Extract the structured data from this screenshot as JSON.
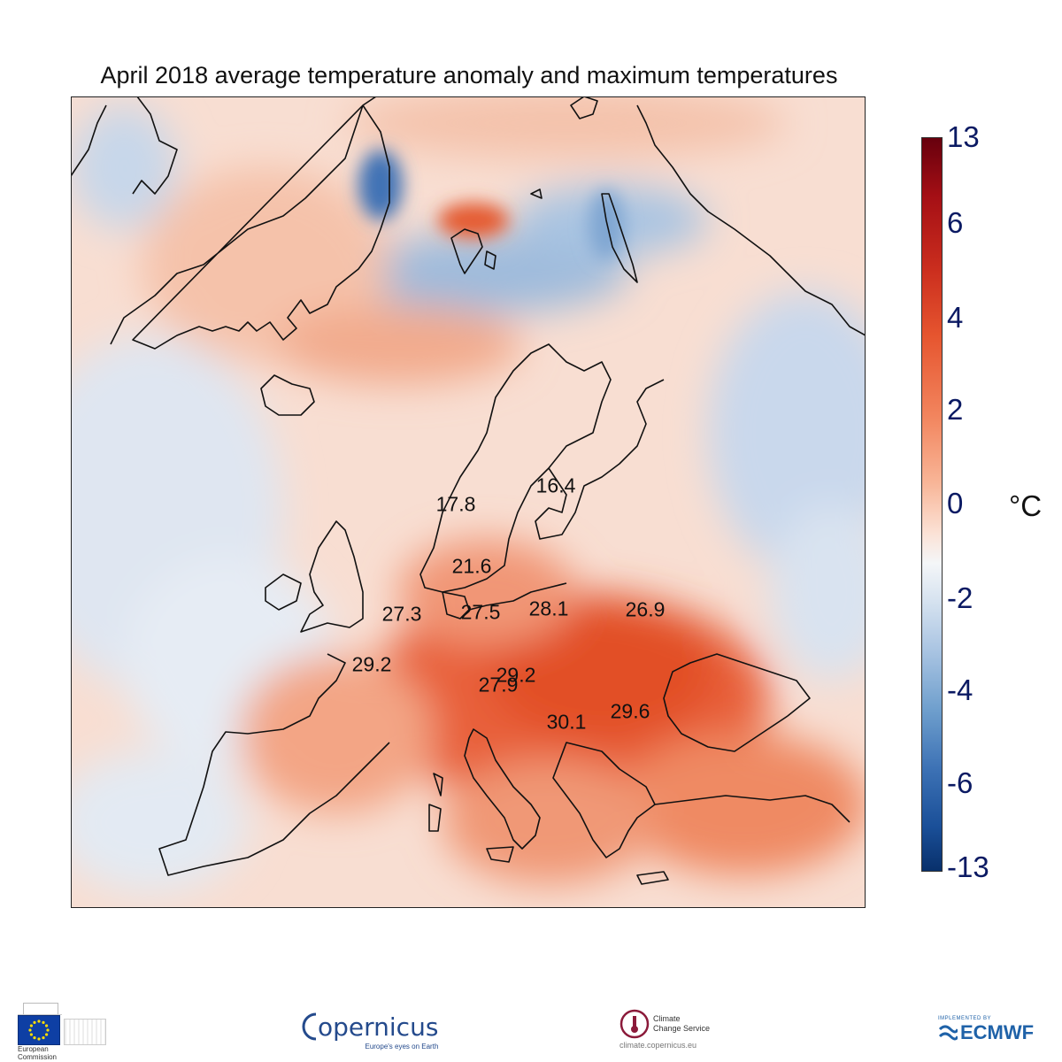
{
  "title": "April 2018 average temperature anomaly and maximum temperatures",
  "chart_data": {
    "type": "heatmap",
    "title": "April 2018 average temperature anomaly and maximum temperatures",
    "colorbar": {
      "unit": "°C",
      "ticks": [
        "13",
        "6",
        "4",
        "2",
        "0",
        "-2",
        "-4",
        "-6",
        "-13"
      ]
    },
    "max_temperature_labels": [
      {
        "value": "17.8",
        "place": "Norway"
      },
      {
        "value": "16.4",
        "place": "Finland"
      },
      {
        "value": "21.6",
        "place": "Denmark"
      },
      {
        "value": "27.3",
        "place": "England"
      },
      {
        "value": "27.5",
        "place": "Northern Germany"
      },
      {
        "value": "28.1",
        "place": "Poland"
      },
      {
        "value": "26.9",
        "place": "Belarus"
      },
      {
        "value": "29.2",
        "place": "France"
      },
      {
        "value": "29.2",
        "place": "Czech Republic"
      },
      {
        "value": "27.9",
        "place": "Austria"
      },
      {
        "value": "30.1",
        "place": "Hungary"
      },
      {
        "value": "29.6",
        "place": "Romania"
      }
    ]
  },
  "logos": {
    "ec": {
      "line1": "European",
      "line2": "Commission"
    },
    "copernicus": {
      "name": "opernicus",
      "tagline": "Europe's eyes on Earth"
    },
    "c3s": {
      "line1": "Climate",
      "line2": "Change Service",
      "url": "climate.copernicus.eu"
    },
    "ecmwf": {
      "top": "IMPLEMENTED BY",
      "name": "ECMWF"
    }
  }
}
